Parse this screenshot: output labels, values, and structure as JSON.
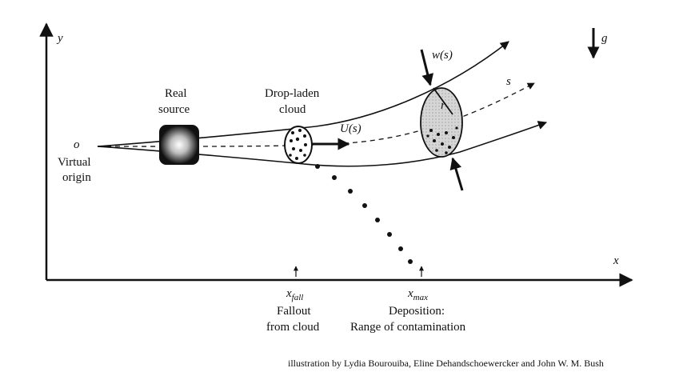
{
  "diagram": {
    "axes": {
      "x": "x",
      "y": "y",
      "gravity": "g"
    },
    "labels": {
      "origin_symbol": "o",
      "origin_line1": "Virtual",
      "origin_line2": "origin",
      "source_line1": "Real",
      "source_line2": "source",
      "cloud_line1": "Drop-laden",
      "cloud_line2": "cloud",
      "velocity": "U(s)",
      "width": "w(s)",
      "radius": "r",
      "arc_length": "s",
      "xfall_main": "x",
      "xfall_sub": "fall",
      "xmax_main": "x",
      "xmax_sub": "max",
      "fallout_line1": "Fallout",
      "fallout_line2": "from cloud",
      "deposition_line1": "Deposition:",
      "deposition_line2": "Range of contamination"
    },
    "credit": "illustration by Lydia Bourouiba, Eline Dehandschoewercker and John W. M. Bush"
  }
}
